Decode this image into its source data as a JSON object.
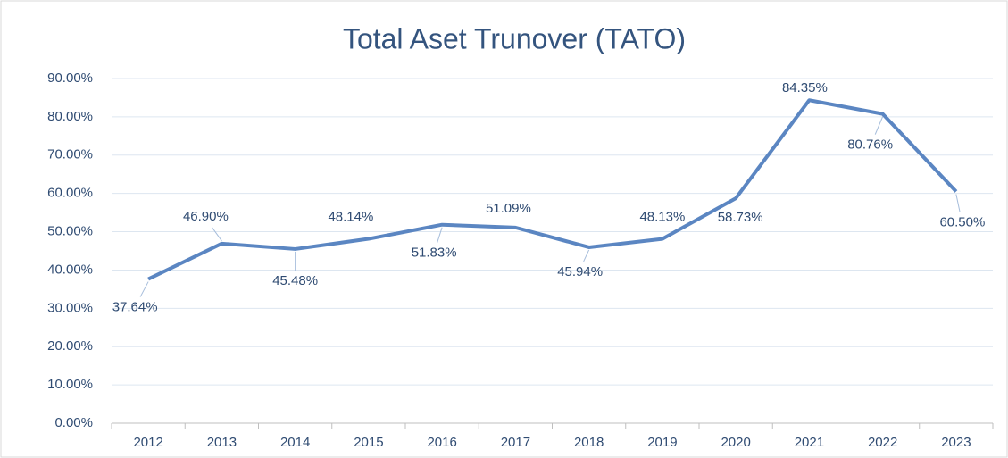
{
  "chart_data": {
    "type": "line",
    "title": "Total Aset Trunover (TATO)",
    "categories": [
      "2012",
      "2013",
      "2014",
      "2015",
      "2016",
      "2017",
      "2018",
      "2019",
      "2020",
      "2021",
      "2022",
      "2023"
    ],
    "series": [
      {
        "name": "TATO",
        "color": "#5b86c2",
        "values": [
          37.64,
          46.9,
          45.48,
          48.14,
          51.83,
          51.09,
          45.94,
          48.13,
          58.73,
          84.35,
          80.76,
          60.5
        ],
        "value_labels": [
          "37.64%",
          "46.90%",
          "45.48%",
          "48.14%",
          "51.83%",
          "51.09%",
          "45.94%",
          "48.13%",
          "58.73%",
          "84.35%",
          "80.76%",
          "60.50%"
        ]
      }
    ],
    "ylim": [
      0,
      90
    ],
    "yticks": [
      {
        "value": 0,
        "label": "0.00%"
      },
      {
        "value": 10,
        "label": "10.00%"
      },
      {
        "value": 20,
        "label": "20.00%"
      },
      {
        "value": 30,
        "label": "30.00%"
      },
      {
        "value": 40,
        "label": "40.00%"
      },
      {
        "value": 50,
        "label": "50.00%"
      },
      {
        "value": 60,
        "label": "60.00%"
      },
      {
        "value": 70,
        "label": "70.00%"
      },
      {
        "value": 80,
        "label": "80.00%"
      },
      {
        "value": 90,
        "label": "90.00%"
      }
    ],
    "grid": true
  }
}
